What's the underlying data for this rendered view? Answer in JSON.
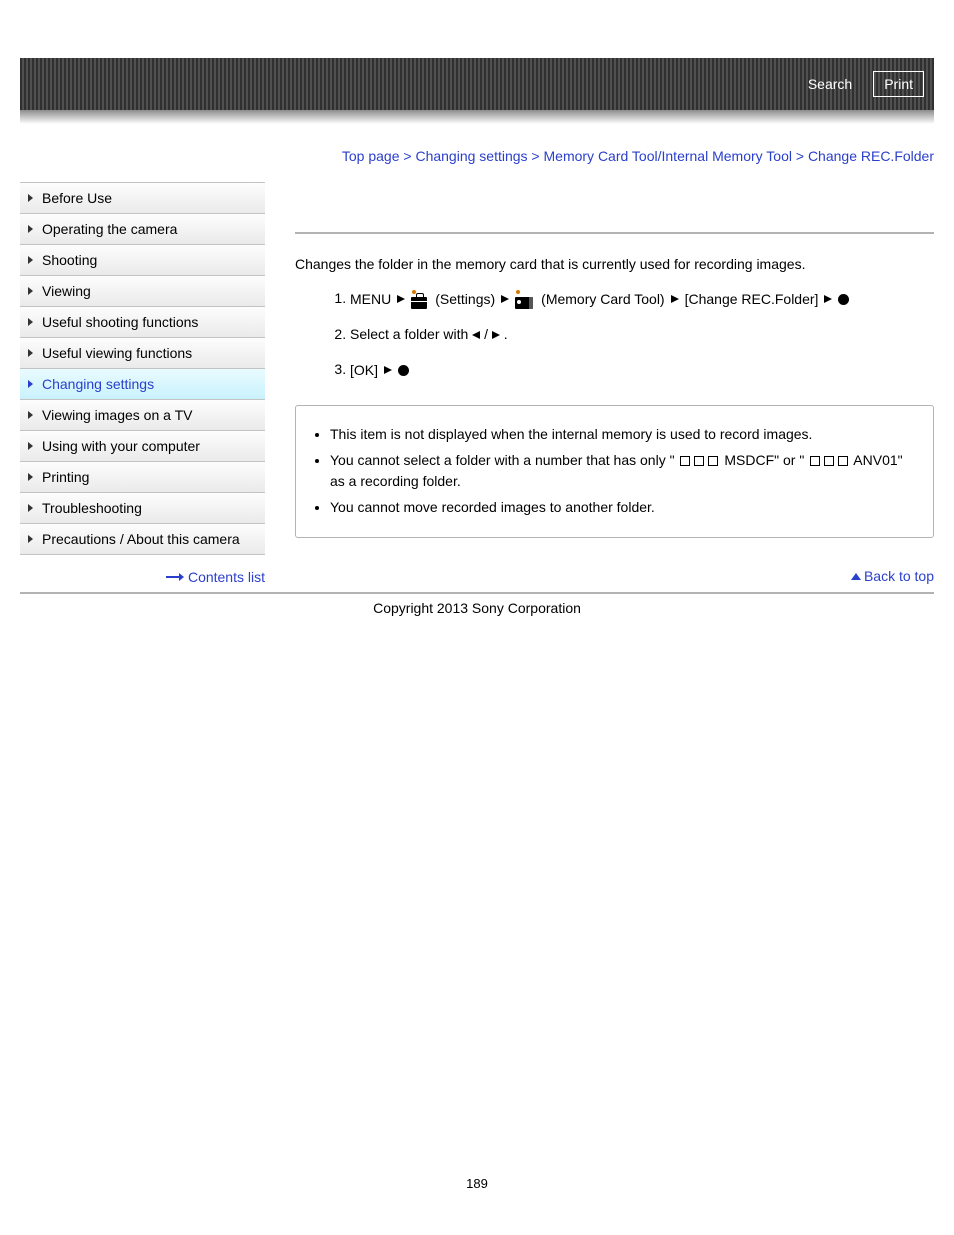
{
  "header": {
    "search": "Search",
    "print": "Print"
  },
  "breadcrumb": {
    "items": [
      "Top page",
      "Changing settings",
      "Memory Card Tool/Internal Memory Tool"
    ],
    "current": "Change REC.Folder",
    "sep": " > "
  },
  "sidebar": {
    "items": [
      {
        "label": "Before Use",
        "active": false
      },
      {
        "label": "Operating the camera",
        "active": false
      },
      {
        "label": "Shooting",
        "active": false
      },
      {
        "label": "Viewing",
        "active": false
      },
      {
        "label": "Useful shooting functions",
        "active": false
      },
      {
        "label": "Useful viewing functions",
        "active": false
      },
      {
        "label": "Changing settings",
        "active": true
      },
      {
        "label": "Viewing images on a TV",
        "active": false
      },
      {
        "label": "Using with your computer",
        "active": false
      },
      {
        "label": "Printing",
        "active": false
      },
      {
        "label": "Troubleshooting",
        "active": false
      },
      {
        "label": "Precautions / About this camera",
        "active": false
      }
    ],
    "contents_list": "Contents list"
  },
  "main": {
    "intro": "Changes the folder in the memory card that is currently used for recording images.",
    "step1": {
      "menu": "MENU",
      "settings": "(Settings)",
      "tool": "(Memory Card Tool)",
      "change": "[Change REC.Folder]"
    },
    "step2_a": "Select a folder with ",
    "step2_b": " / ",
    "step2_c": " .",
    "step3": "[OK]",
    "notes": [
      "This item is not displayed when the internal memory is used to record images.",
      {
        "pre": "You cannot select a folder with a number that has only \" ",
        "mid1": " MSDCF\" or \" ",
        "mid2": " ANV01\" as a recording folder."
      },
      "You cannot move recorded images to another folder."
    ],
    "backtop": "Back to top"
  },
  "footer": {
    "copyright": "Copyright 2013 Sony Corporation",
    "pagenum": "189"
  },
  "colors": {
    "link": "#2a3fcc",
    "header_bg_dark": "#303030",
    "header_bg_light": "#505050",
    "sidebar_border": "#c3c3c3",
    "sidebar_grad_top": "#fdfdfd",
    "sidebar_grad_bot": "#eaeaea",
    "sidebar_active_top": "#e9fbff",
    "sidebar_active_bot": "#c9f2fc"
  }
}
